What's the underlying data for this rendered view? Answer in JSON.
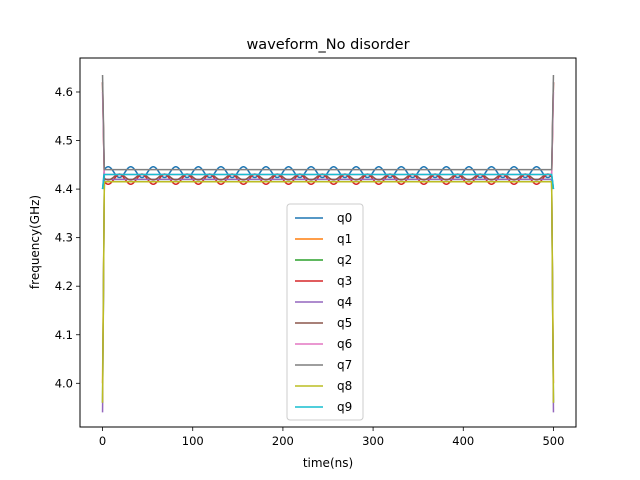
{
  "chart_data": {
    "type": "line",
    "title": "waveform_No disorder",
    "xlabel": "time(ns)",
    "ylabel": "frequency(GHz)",
    "xlim": [
      -25,
      525
    ],
    "ylim": [
      3.91,
      4.67
    ],
    "xticks": [
      0,
      100,
      200,
      300,
      400,
      500
    ],
    "yticks": [
      4.0,
      4.1,
      4.2,
      4.3,
      4.4,
      4.5,
      4.6
    ],
    "x_range": [
      0,
      500
    ],
    "grid": false,
    "legend_position": "bottom-center",
    "series": [
      {
        "name": "q0",
        "color": "#1f77b4",
        "plateau": 4.435,
        "oscillation_amplitude": 0.011,
        "oscillation_period_ns": 25,
        "phase": 0,
        "start_value": 4.4,
        "end_value": 4.4
      },
      {
        "name": "q1",
        "color": "#ff7f0e",
        "plateau": 4.415,
        "oscillation_amplitude": 0.0,
        "oscillation_period_ns": 25,
        "phase": 0,
        "start_value": 4.0,
        "end_value": 4.0
      },
      {
        "name": "q2",
        "color": "#2ca02c",
        "plateau": 4.42,
        "oscillation_amplitude": 0.0,
        "oscillation_period_ns": 25,
        "phase": 0,
        "start_value": 3.96,
        "end_value": 3.96
      },
      {
        "name": "q3",
        "color": "#d62728",
        "plateau": 4.42,
        "oscillation_amplitude": 0.01,
        "oscillation_period_ns": 25,
        "phase": 3.14159,
        "start_value": 4.62,
        "end_value": 4.62
      },
      {
        "name": "q4",
        "color": "#9467bd",
        "plateau": 4.42,
        "oscillation_amplitude": 0.0,
        "oscillation_period_ns": 25,
        "phase": 0,
        "start_value": 3.94,
        "end_value": 3.94
      },
      {
        "name": "q5",
        "color": "#8c564b",
        "plateau": 4.425,
        "oscillation_amplitude": 0.006,
        "oscillation_period_ns": 25,
        "phase": 3.14159,
        "start_value": 4.62,
        "end_value": 4.62
      },
      {
        "name": "q6",
        "color": "#e377c2",
        "plateau": 4.43,
        "oscillation_amplitude": 0.0,
        "oscillation_period_ns": 25,
        "phase": 0,
        "start_value": 4.6,
        "end_value": 4.6
      },
      {
        "name": "q7",
        "color": "#7f7f7f",
        "plateau": 4.44,
        "oscillation_amplitude": 0.0,
        "oscillation_period_ns": 25,
        "phase": 0,
        "start_value": 4.635,
        "end_value": 4.635
      },
      {
        "name": "q8",
        "color": "#bcbd22",
        "plateau": 4.415,
        "oscillation_amplitude": 0.0,
        "oscillation_period_ns": 25,
        "phase": 0,
        "start_value": 3.96,
        "end_value": 3.96
      },
      {
        "name": "q9",
        "color": "#17becf",
        "plateau": 4.43,
        "oscillation_amplitude": 0.0,
        "oscillation_period_ns": 25,
        "phase": 0,
        "start_value": 4.4,
        "end_value": 4.4
      }
    ]
  }
}
